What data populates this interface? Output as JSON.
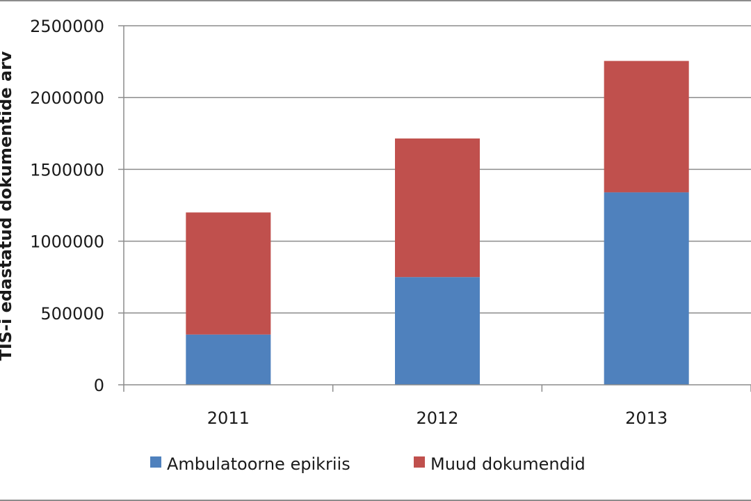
{
  "chart_data": {
    "type": "bar",
    "stacked": true,
    "categories": [
      "2011",
      "2012",
      "2013"
    ],
    "series": [
      {
        "name": "Ambulatoorne epikriis",
        "color": "#4f81bd",
        "values": [
          350000,
          750000,
          1340000
        ]
      },
      {
        "name": "Muud dokumendid",
        "color": "#c0504d",
        "values": [
          850000,
          965000,
          915000
        ]
      }
    ],
    "ylabel": "TIS-i edastatud dokumentide arv",
    "ylim": [
      0,
      2500000
    ],
    "yticks": [
      "0",
      "500000",
      "1000000",
      "1500000",
      "2000000",
      "2500000"
    ],
    "grid": true,
    "legend_position": "bottom"
  }
}
